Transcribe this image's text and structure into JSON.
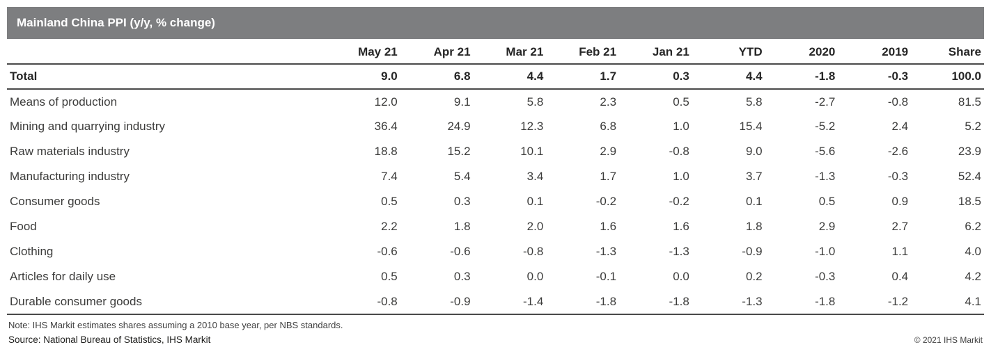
{
  "title": "Mainland China PPI (y/y, % change)",
  "colors": {
    "title_bar_bg": "#7d7e80",
    "title_text": "#ffffff",
    "rule": "#4a4a4a",
    "body_text": "#3c3c3b"
  },
  "chart_data": {
    "type": "table",
    "title": "Mainland China PPI (y/y, % change)",
    "columns": [
      "May 21",
      "Apr 21",
      "Mar 21",
      "Feb 21",
      "Jan 21",
      "YTD",
      "2020",
      "2019",
      "Share"
    ],
    "rows": [
      {
        "label": "Total",
        "indent": 0,
        "bold": true,
        "values": [
          9.0,
          6.8,
          4.4,
          1.7,
          0.3,
          4.4,
          -1.8,
          -0.3,
          100.0
        ]
      },
      {
        "label": "Means of production",
        "indent": 1,
        "bold": false,
        "values": [
          12.0,
          9.1,
          5.8,
          2.3,
          0.5,
          5.8,
          -2.7,
          -0.8,
          81.5
        ]
      },
      {
        "label": "Mining and quarrying industry",
        "indent": 2,
        "bold": false,
        "values": [
          36.4,
          24.9,
          12.3,
          6.8,
          1.0,
          15.4,
          -5.2,
          2.4,
          5.2
        ]
      },
      {
        "label": "Raw materials industry",
        "indent": 2,
        "bold": false,
        "values": [
          18.8,
          15.2,
          10.1,
          2.9,
          -0.8,
          9.0,
          -5.6,
          -2.6,
          23.9
        ]
      },
      {
        "label": "Manufacturing industry",
        "indent": 2,
        "bold": false,
        "values": [
          7.4,
          5.4,
          3.4,
          1.7,
          1.0,
          3.7,
          -1.3,
          -0.3,
          52.4
        ]
      },
      {
        "label": "Consumer goods",
        "indent": 1,
        "bold": false,
        "values": [
          0.5,
          0.3,
          0.1,
          -0.2,
          -0.2,
          0.1,
          0.5,
          0.9,
          18.5
        ]
      },
      {
        "label": "Food",
        "indent": 2,
        "bold": false,
        "values": [
          2.2,
          1.8,
          2.0,
          1.6,
          1.6,
          1.8,
          2.9,
          2.7,
          6.2
        ]
      },
      {
        "label": "Clothing",
        "indent": 2,
        "bold": false,
        "values": [
          -0.6,
          -0.6,
          -0.8,
          -1.3,
          -1.3,
          -0.9,
          -1.0,
          1.1,
          4.0
        ]
      },
      {
        "label": "Articles for daily use",
        "indent": 2,
        "bold": false,
        "values": [
          0.5,
          0.3,
          0.0,
          -0.1,
          0.0,
          0.2,
          -0.3,
          0.4,
          4.2
        ]
      },
      {
        "label": "Durable consumer goods",
        "indent": 2,
        "bold": false,
        "values": [
          -0.8,
          -0.9,
          -1.4,
          -1.8,
          -1.8,
          -1.3,
          -1.8,
          -1.2,
          4.1
        ]
      }
    ]
  },
  "footer": {
    "note": "Note: IHS Markit estimates shares assuming a 2010 base year, per NBS standards.",
    "source": "Source: National Bureau of Statistics, IHS Markit",
    "copyright": "© 2021 IHS Markit"
  }
}
